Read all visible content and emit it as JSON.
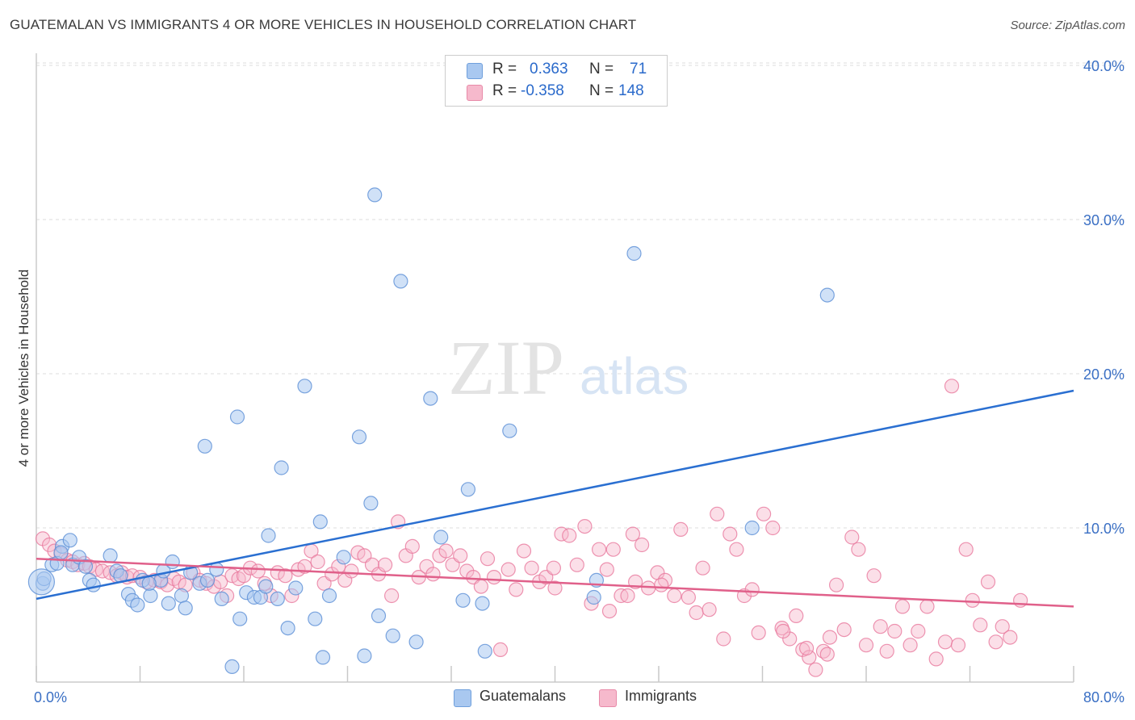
{
  "title": "GUATEMALAN VS IMMIGRANTS 4 OR MORE VEHICLES IN HOUSEHOLD CORRELATION CHART",
  "source": "Source: ZipAtlas.com",
  "watermark": {
    "zip": "ZIP",
    "atlas": "atlas"
  },
  "legend": {
    "rows": [
      {
        "r_label": "R =",
        "r_value": "0.363",
        "n_label": "N =",
        "n_value": "71",
        "color": "#a9c8f0"
      },
      {
        "r_label": "R =",
        "r_value": "-0.358",
        "n_label": "N =",
        "n_value": "148",
        "color": "#f6b9cc"
      }
    ]
  },
  "bottom_legend": [
    {
      "label": "Guatemalans",
      "color": "#a9c8f0"
    },
    {
      "label": "Immigrants",
      "color": "#f6b9cc"
    }
  ],
  "chart_data": {
    "type": "scatter",
    "title": "GUATEMALAN VS IMMIGRANTS 4 OR MORE VEHICLES IN HOUSEHOLD CORRELATION CHART",
    "xlabel": "",
    "ylabel": "4 or more Vehicles in Household",
    "xlim": [
      0,
      80
    ],
    "ylim": [
      0,
      40
    ],
    "x_tick_labels": [
      "0.0%",
      "80.0%"
    ],
    "y_tick_labels": [
      "10.0%",
      "20.0%",
      "30.0%",
      "40.0%"
    ],
    "y_ticks": [
      10,
      20,
      30,
      40
    ],
    "grid": true,
    "legend_position": "top-center",
    "series": [
      {
        "name": "Guatemalans",
        "color": "#5b8fd6",
        "fill": "#a9c8f0",
        "trend": {
          "x": [
            0,
            80
          ],
          "y": [
            5.4,
            18.9
          ],
          "color": "#2a6fd1"
        },
        "points": [
          [
            0.5,
            6.4
          ],
          [
            0.6,
            6.7
          ],
          [
            1.2,
            7.6
          ],
          [
            1.6,
            7.7
          ],
          [
            2.0,
            8.8
          ],
          [
            2.6,
            9.2
          ],
          [
            2.8,
            7.6
          ],
          [
            3.3,
            8.1
          ],
          [
            3.8,
            7.5
          ],
          [
            4.1,
            6.6
          ],
          [
            4.4,
            6.3
          ],
          [
            5.7,
            8.2
          ],
          [
            6.2,
            7.2
          ],
          [
            6.5,
            6.9
          ],
          [
            7.1,
            5.7
          ],
          [
            7.4,
            5.3
          ],
          [
            7.8,
            5.0
          ],
          [
            8.2,
            6.6
          ],
          [
            8.8,
            5.6
          ],
          [
            9.6,
            6.6
          ],
          [
            9.8,
            7.2
          ],
          [
            10.2,
            5.1
          ],
          [
            10.5,
            7.8
          ],
          [
            11.2,
            5.6
          ],
          [
            11.5,
            4.8
          ],
          [
            11.9,
            7.1
          ],
          [
            12.6,
            6.4
          ],
          [
            13.0,
            15.3
          ],
          [
            13.2,
            6.6
          ],
          [
            13.9,
            7.3
          ],
          [
            14.3,
            5.4
          ],
          [
            15.1,
            1.0
          ],
          [
            15.5,
            17.2
          ],
          [
            15.7,
            4.1
          ],
          [
            16.2,
            5.8
          ],
          [
            16.8,
            5.5
          ],
          [
            17.3,
            5.5
          ],
          [
            17.7,
            6.2
          ],
          [
            17.9,
            9.5
          ],
          [
            18.6,
            5.4
          ],
          [
            18.9,
            13.9
          ],
          [
            19.4,
            3.5
          ],
          [
            20.0,
            6.1
          ],
          [
            20.7,
            19.2
          ],
          [
            21.5,
            4.1
          ],
          [
            21.9,
            10.4
          ],
          [
            22.1,
            1.6
          ],
          [
            22.6,
            5.6
          ],
          [
            23.7,
            8.1
          ],
          [
            24.9,
            15.9
          ],
          [
            25.3,
            1.7
          ],
          [
            25.8,
            11.6
          ],
          [
            26.1,
            31.6
          ],
          [
            26.4,
            4.3
          ],
          [
            27.5,
            3.0
          ],
          [
            28.1,
            26.0
          ],
          [
            29.3,
            2.6
          ],
          [
            30.4,
            18.4
          ],
          [
            31.2,
            9.4
          ],
          [
            32.9,
            5.3
          ],
          [
            33.3,
            12.5
          ],
          [
            34.4,
            5.1
          ],
          [
            34.6,
            2.0
          ],
          [
            36.5,
            16.3
          ],
          [
            43.0,
            5.5
          ],
          [
            43.2,
            6.6
          ],
          [
            46.1,
            27.8
          ],
          [
            55.2,
            10.0
          ],
          [
            61.0,
            25.1
          ],
          [
            1.9,
            8.4
          ],
          [
            8.7,
            6.4
          ]
        ]
      },
      {
        "name": "Immigrants",
        "color": "#e8799d",
        "fill": "#f6b9cc",
        "trend": {
          "x": [
            0,
            80
          ],
          "y": [
            8.0,
            4.9
          ],
          "color": "#e0608a"
        },
        "points": [
          [
            0.5,
            9.3
          ],
          [
            1.0,
            8.9
          ],
          [
            1.4,
            8.5
          ],
          [
            1.9,
            8.3
          ],
          [
            2.4,
            7.9
          ],
          [
            2.8,
            7.8
          ],
          [
            3.2,
            7.6
          ],
          [
            3.7,
            7.7
          ],
          [
            4.1,
            7.5
          ],
          [
            4.6,
            7.3
          ],
          [
            5.1,
            7.2
          ],
          [
            5.7,
            7.1
          ],
          [
            6.2,
            6.9
          ],
          [
            6.6,
            7.1
          ],
          [
            7.0,
            6.8
          ],
          [
            7.4,
            6.9
          ],
          [
            8.0,
            6.8
          ],
          [
            8.5,
            6.5
          ],
          [
            9.1,
            6.6
          ],
          [
            9.6,
            6.5
          ],
          [
            10.1,
            6.3
          ],
          [
            10.6,
            6.7
          ],
          [
            11.0,
            6.5
          ],
          [
            11.5,
            6.3
          ],
          [
            12.1,
            7.1
          ],
          [
            12.6,
            6.6
          ],
          [
            13.1,
            6.4
          ],
          [
            13.7,
            6.2
          ],
          [
            14.2,
            6.5
          ],
          [
            14.7,
            5.6
          ],
          [
            15.1,
            6.9
          ],
          [
            15.6,
            6.7
          ],
          [
            16.0,
            6.9
          ],
          [
            16.5,
            7.4
          ],
          [
            17.1,
            7.2
          ],
          [
            17.6,
            6.4
          ],
          [
            18.1,
            5.6
          ],
          [
            18.6,
            7.1
          ],
          [
            19.2,
            6.9
          ],
          [
            19.7,
            5.6
          ],
          [
            20.2,
            7.3
          ],
          [
            20.7,
            7.5
          ],
          [
            21.2,
            8.5
          ],
          [
            21.7,
            7.8
          ],
          [
            22.2,
            6.4
          ],
          [
            22.8,
            7.0
          ],
          [
            23.3,
            7.5
          ],
          [
            23.8,
            6.6
          ],
          [
            24.3,
            7.2
          ],
          [
            24.8,
            8.4
          ],
          [
            25.3,
            8.2
          ],
          [
            25.9,
            7.6
          ],
          [
            26.4,
            7.0
          ],
          [
            26.9,
            7.6
          ],
          [
            27.4,
            5.6
          ],
          [
            27.9,
            10.4
          ],
          [
            28.5,
            8.2
          ],
          [
            29.0,
            8.8
          ],
          [
            29.5,
            6.8
          ],
          [
            30.1,
            7.5
          ],
          [
            30.6,
            7.0
          ],
          [
            31.1,
            8.2
          ],
          [
            31.6,
            8.5
          ],
          [
            32.1,
            7.6
          ],
          [
            32.7,
            8.2
          ],
          [
            33.2,
            7.2
          ],
          [
            33.7,
            6.8
          ],
          [
            34.3,
            6.2
          ],
          [
            34.8,
            8.0
          ],
          [
            35.3,
            6.8
          ],
          [
            35.8,
            2.1
          ],
          [
            36.4,
            7.3
          ],
          [
            37.0,
            6.0
          ],
          [
            37.6,
            8.5
          ],
          [
            38.2,
            7.4
          ],
          [
            38.8,
            6.5
          ],
          [
            39.3,
            6.8
          ],
          [
            39.9,
            7.4
          ],
          [
            40.5,
            9.6
          ],
          [
            41.1,
            9.5
          ],
          [
            41.7,
            7.6
          ],
          [
            42.3,
            10.1
          ],
          [
            42.8,
            5.1
          ],
          [
            43.4,
            8.6
          ],
          [
            44.0,
            7.3
          ],
          [
            44.5,
            8.6
          ],
          [
            45.1,
            5.6
          ],
          [
            45.6,
            5.6
          ],
          [
            46.2,
            6.5
          ],
          [
            46.7,
            8.9
          ],
          [
            47.2,
            6.1
          ],
          [
            47.9,
            7.1
          ],
          [
            48.5,
            6.6
          ],
          [
            49.2,
            5.6
          ],
          [
            49.7,
            9.9
          ],
          [
            50.3,
            5.5
          ],
          [
            50.9,
            4.5
          ],
          [
            51.4,
            7.4
          ],
          [
            51.9,
            4.7
          ],
          [
            52.5,
            10.9
          ],
          [
            53.0,
            2.8
          ],
          [
            53.5,
            9.6
          ],
          [
            54.0,
            8.6
          ],
          [
            54.6,
            5.6
          ],
          [
            55.2,
            6.0
          ],
          [
            55.7,
            3.2
          ],
          [
            56.1,
            10.9
          ],
          [
            56.8,
            10.0
          ],
          [
            57.5,
            3.5
          ],
          [
            58.1,
            2.8
          ],
          [
            58.6,
            4.3
          ],
          [
            59.1,
            2.1
          ],
          [
            59.6,
            1.6
          ],
          [
            60.1,
            0.8
          ],
          [
            60.7,
            2.0
          ],
          [
            61.2,
            2.9
          ],
          [
            61.7,
            6.3
          ],
          [
            62.3,
            3.4
          ],
          [
            62.9,
            9.4
          ],
          [
            63.4,
            8.6
          ],
          [
            64.0,
            2.4
          ],
          [
            64.6,
            6.9
          ],
          [
            65.1,
            3.6
          ],
          [
            65.6,
            2.0
          ],
          [
            66.2,
            3.3
          ],
          [
            66.8,
            4.9
          ],
          [
            67.4,
            2.4
          ],
          [
            68.0,
            3.3
          ],
          [
            68.7,
            4.9
          ],
          [
            69.4,
            1.5
          ],
          [
            70.1,
            2.6
          ],
          [
            70.6,
            19.2
          ],
          [
            71.1,
            2.4
          ],
          [
            71.7,
            8.6
          ],
          [
            72.2,
            5.3
          ],
          [
            72.8,
            3.7
          ],
          [
            73.4,
            6.5
          ],
          [
            74.0,
            2.6
          ],
          [
            74.5,
            3.6
          ],
          [
            75.1,
            2.9
          ],
          [
            75.9,
            5.3
          ],
          [
            61.0,
            1.8
          ],
          [
            59.4,
            2.2
          ],
          [
            57.6,
            3.3
          ],
          [
            48.2,
            6.3
          ],
          [
            46.0,
            9.6
          ],
          [
            44.2,
            4.6
          ],
          [
            40.0,
            6.1
          ]
        ]
      }
    ]
  }
}
